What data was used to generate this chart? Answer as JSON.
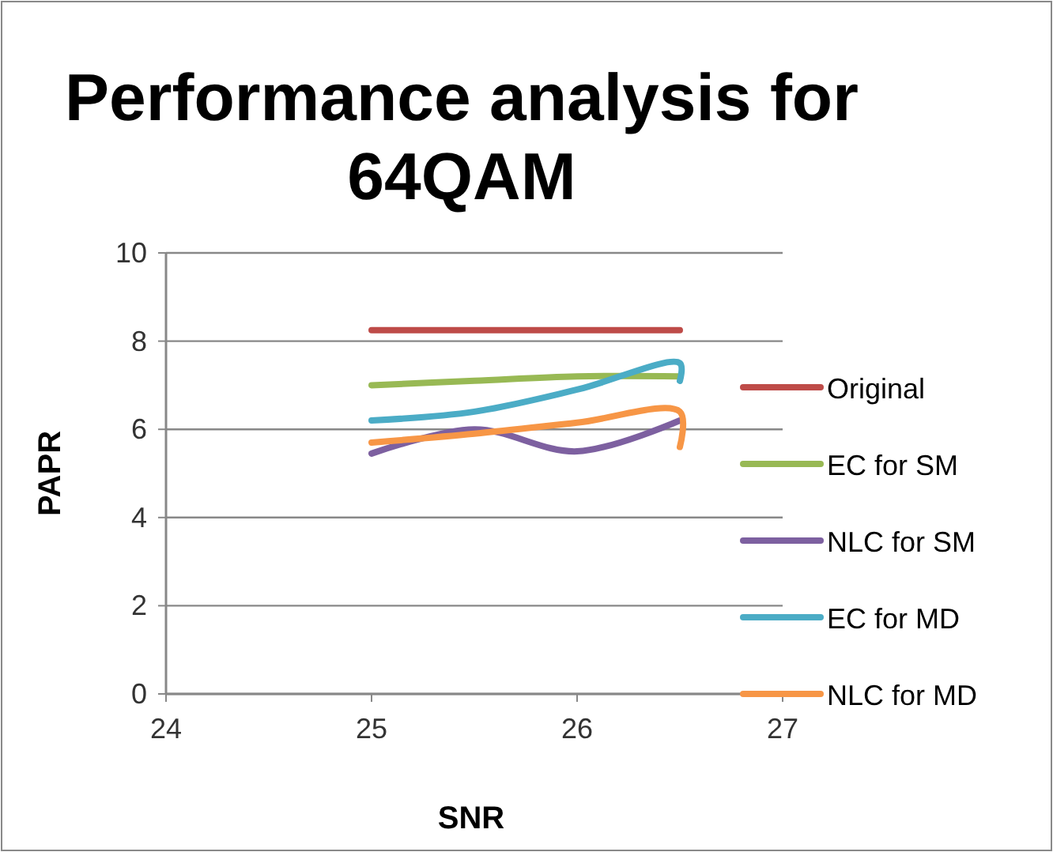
{
  "chart_data": {
    "type": "line",
    "title": "Performance analysis for 64QAM",
    "xlabel": "SNR",
    "ylabel": "PAPR",
    "xlim": [
      24,
      27
    ],
    "xticks": [
      24,
      25,
      26,
      27
    ],
    "ylim": [
      0,
      10
    ],
    "yticks": [
      0,
      2,
      4,
      6,
      8,
      10
    ],
    "grid": "y",
    "legend": "right",
    "marker": "none",
    "line_style": "solid",
    "series": [
      {
        "name": "Original",
        "color": "#be4b48",
        "x": [
          25,
          25.5,
          26,
          26.5
        ],
        "values": [
          8.25,
          8.25,
          8.25,
          8.25
        ]
      },
      {
        "name": "EC for SM",
        "color": "#98b954",
        "x": [
          25,
          25.5,
          26,
          26.5
        ],
        "values": [
          7.0,
          7.1,
          7.2,
          7.2
        ]
      },
      {
        "name": "NLC for SM",
        "color": "#7d60a0",
        "x": [
          25,
          25.5,
          26,
          26.5
        ],
        "values": [
          5.45,
          6.0,
          5.5,
          6.2
        ]
      },
      {
        "name": "EC for MD",
        "color": "#4bacc6",
        "x": [
          25,
          25.5,
          26,
          26.5,
          26.5
        ],
        "values": [
          6.2,
          6.4,
          6.9,
          7.5,
          7.1
        ]
      },
      {
        "name": "NLC for MD",
        "color": "#f79646",
        "x": [
          25,
          25.5,
          26,
          26.5,
          26.5
        ],
        "values": [
          5.7,
          5.9,
          6.15,
          6.4,
          5.6
        ]
      }
    ]
  }
}
